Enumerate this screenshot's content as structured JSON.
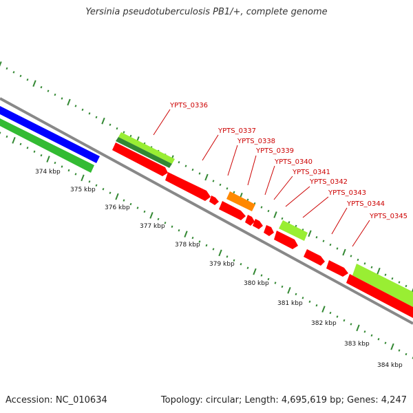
{
  "header": {
    "title": "Yersinia pseudotuberculosis PB1/+, complete genome"
  },
  "footer": {
    "accession": "Accession: NC_010634",
    "stats": "Topology: circular; Length: 4,695,619 bp; Genes: 4,247"
  },
  "colors": {
    "backbone": "#888888",
    "cds_forward": "#ff0000",
    "gene_blue": "#0000ff",
    "gene_green": "#33bb33",
    "gene_lime": "#99ee33",
    "gene_dark_green": "#338833",
    "gene_orange": "#ff8800",
    "tick_green": "#338833",
    "label_red": "#cc0000"
  },
  "scale": {
    "labels": [
      "374 kbp",
      "375 kbp",
      "376 kbp",
      "377 kbp",
      "378 kbp",
      "379 kbp",
      "380 kbp",
      "381 kbp",
      "382 kbp",
      "383 kbp",
      "384 kbp"
    ]
  },
  "genes": {
    "labels": [
      "YPTS_0336",
      "YPTS_0337",
      "YPTS_0338",
      "YPTS_0339",
      "YPTS_0340",
      "YPTS_0341",
      "YPTS_0342",
      "YPTS_0343",
      "YPTS_0344",
      "YPTS_0345"
    ]
  }
}
